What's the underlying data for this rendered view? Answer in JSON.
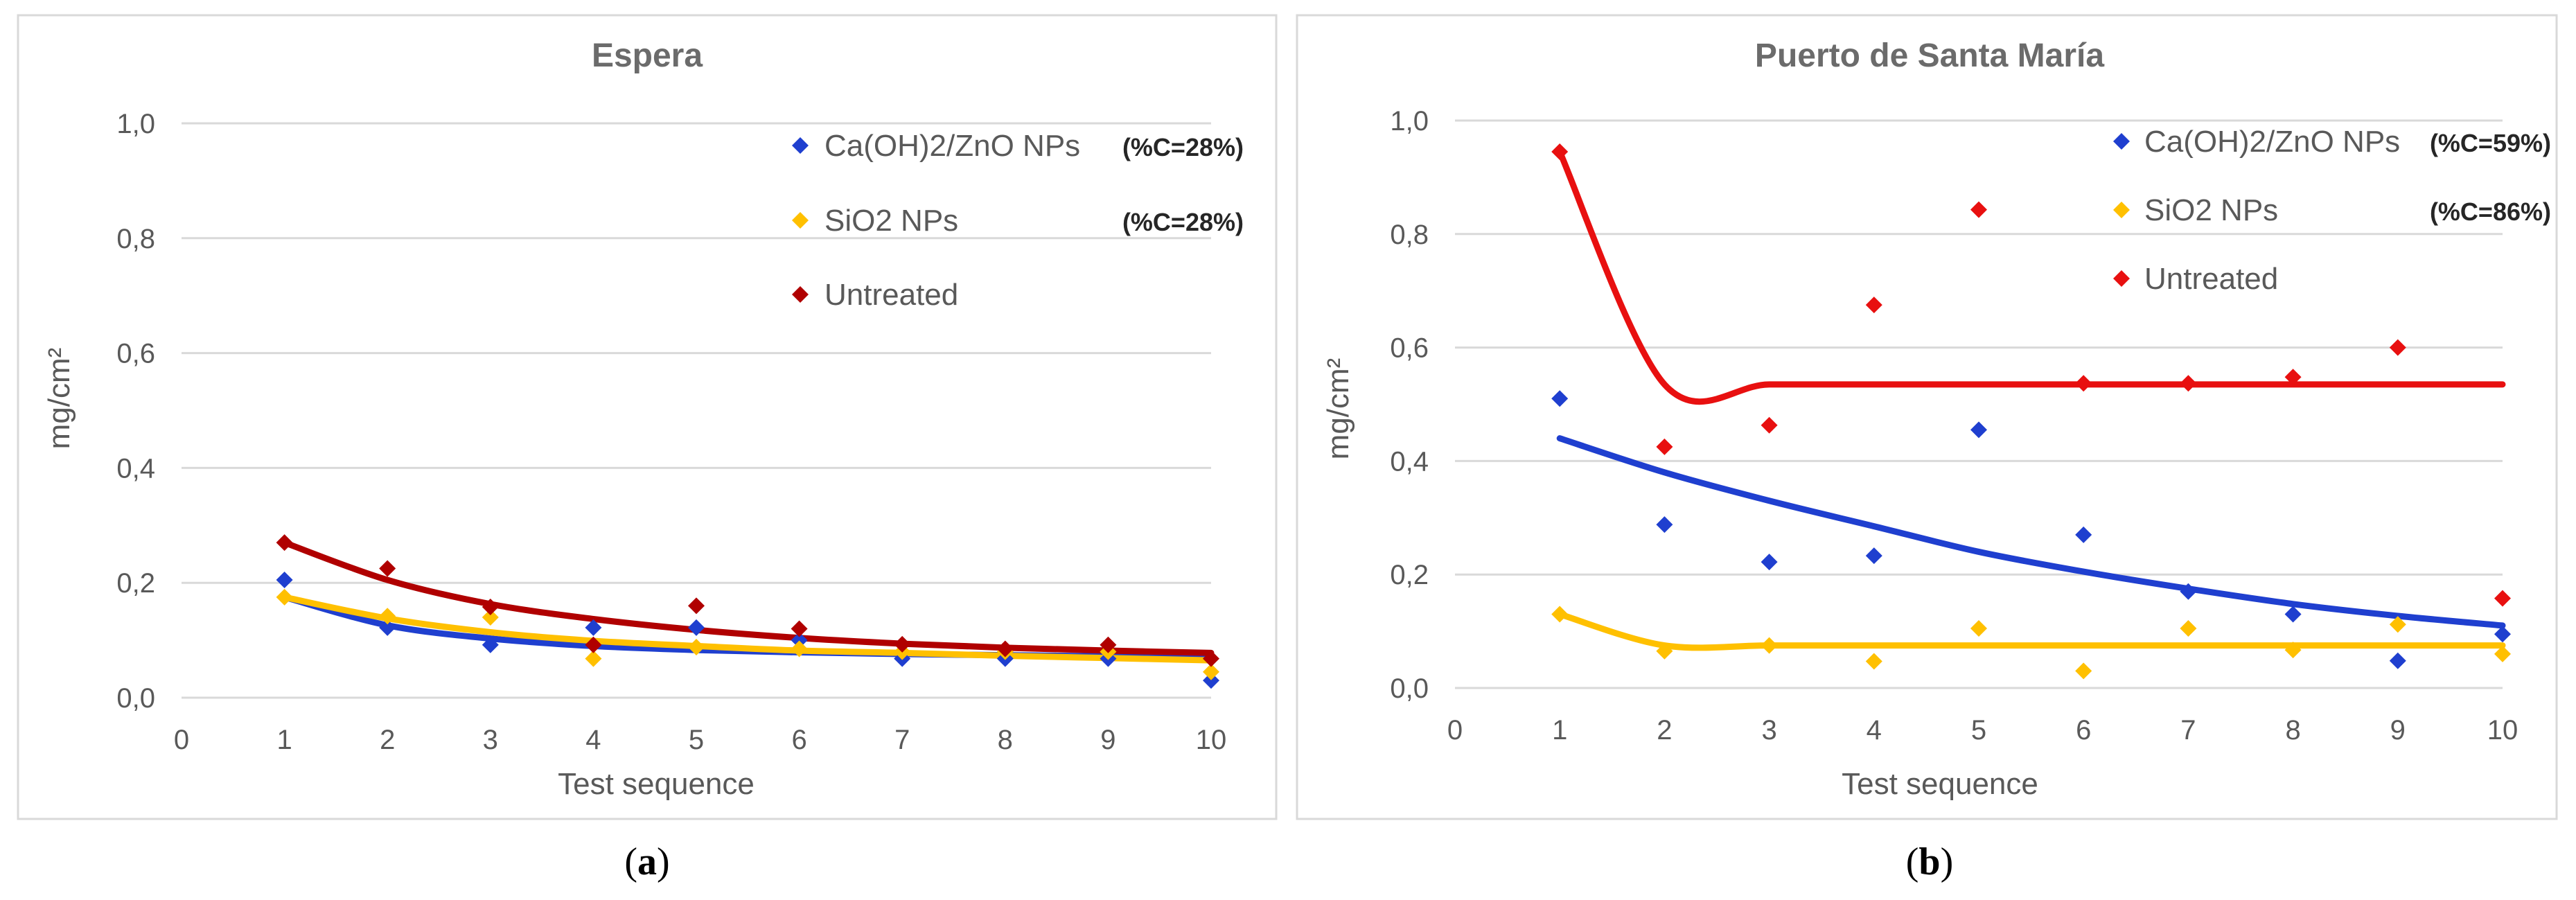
{
  "chart_data": [
    {
      "type": "scatter",
      "panel_label": "a",
      "title": "Espera",
      "xlabel": "Test sequence",
      "ylabel": "mg/cm²",
      "xlim": [
        0,
        10
      ],
      "ylim": [
        0,
        1.0
      ],
      "x_ticks": [
        "0",
        "1",
        "2",
        "3",
        "4",
        "5",
        "6",
        "7",
        "8",
        "9",
        "10"
      ],
      "y_ticks": [
        "0,0",
        "0,2",
        "0,4",
        "0,6",
        "0,8",
        "1,0"
      ],
      "legend_position": "top-right",
      "series": [
        {
          "name": "Ca(OH)2/ZnO NPs",
          "note": "(%C=28%)",
          "color": "#1f3fcf",
          "x": [
            1,
            2,
            3,
            4,
            5,
            6,
            7,
            8,
            9,
            10
          ],
          "values": [
            0.205,
            0.122,
            0.092,
            0.122,
            0.122,
            0.1,
            0.068,
            0.068,
            0.068,
            0.03
          ],
          "trend": [
            0.175,
            0.126,
            0.103,
            0.09,
            0.083,
            0.079,
            0.076,
            0.074,
            0.072,
            0.07
          ]
        },
        {
          "name": "SiO2 NPs",
          "note": "(%C=28%)",
          "color": "#ffc000",
          "x": [
            1,
            2,
            3,
            4,
            5,
            6,
            7,
            8,
            9,
            10
          ],
          "values": [
            0.175,
            0.142,
            0.14,
            0.068,
            0.088,
            0.085,
            0.08,
            0.08,
            0.08,
            0.045
          ],
          "trend": [
            0.175,
            0.138,
            0.114,
            0.099,
            0.09,
            0.082,
            0.078,
            0.073,
            0.069,
            0.065
          ]
        },
        {
          "name": "Untreated",
          "note": "",
          "color": "#b00000",
          "x": [
            1,
            2,
            3,
            4,
            5,
            6,
            7,
            8,
            9,
            10
          ],
          "values": [
            0.27,
            0.225,
            0.158,
            0.092,
            0.16,
            0.12,
            0.093,
            0.085,
            0.092,
            0.068
          ],
          "trend": [
            0.27,
            0.205,
            0.163,
            0.137,
            0.118,
            0.104,
            0.094,
            0.087,
            0.082,
            0.078
          ]
        }
      ]
    },
    {
      "type": "scatter",
      "panel_label": "b",
      "title": "Puerto de Santa María",
      "xlabel": "Test sequence",
      "ylabel": "mg/cm²",
      "xlim": [
        0,
        10
      ],
      "ylim": [
        0,
        1.0
      ],
      "x_ticks": [
        "0",
        "1",
        "2",
        "3",
        "4",
        "5",
        "6",
        "7",
        "8",
        "9",
        "10"
      ],
      "y_ticks": [
        "0,0",
        "0,2",
        "0,4",
        "0,6",
        "0,8",
        "1,0"
      ],
      "legend_position": "top-right",
      "series": [
        {
          "name": "Ca(OH)2/ZnO NPs",
          "note": "(%C=59%)",
          "color": "#1f3fcf",
          "x": [
            1,
            2,
            3,
            4,
            5,
            6,
            7,
            8,
            9,
            10
          ],
          "values": [
            0.51,
            0.288,
            0.222,
            0.233,
            0.455,
            0.27,
            0.17,
            0.13,
            0.048,
            0.095
          ],
          "trend": [
            0.44,
            0.38,
            0.33,
            0.285,
            0.24,
            0.205,
            0.175,
            0.148,
            0.127,
            0.11
          ]
        },
        {
          "name": "SiO2 NPs",
          "note": "(%C=86%)",
          "color": "#ffc000",
          "x": [
            1,
            2,
            3,
            4,
            5,
            6,
            7,
            8,
            9,
            10
          ],
          "values": [
            0.13,
            0.065,
            0.075,
            0.047,
            0.105,
            0.03,
            0.105,
            0.067,
            0.112,
            0.06
          ],
          "trend": [
            0.13,
            0.075,
            0.075,
            0.075,
            0.075,
            0.075,
            0.075,
            0.075,
            0.075,
            0.075
          ]
        },
        {
          "name": "Untreated",
          "note": "",
          "color": "#e81010",
          "x": [
            1,
            2,
            3,
            4,
            5,
            6,
            7,
            8,
            9,
            10
          ],
          "values": [
            0.945,
            0.425,
            0.463,
            0.675,
            0.843,
            0.537,
            0.537,
            0.548,
            0.6,
            0.158
          ],
          "trend": [
            0.945,
            0.535,
            0.535,
            0.535,
            0.535,
            0.535,
            0.535,
            0.535,
            0.535,
            0.535
          ]
        }
      ]
    }
  ]
}
